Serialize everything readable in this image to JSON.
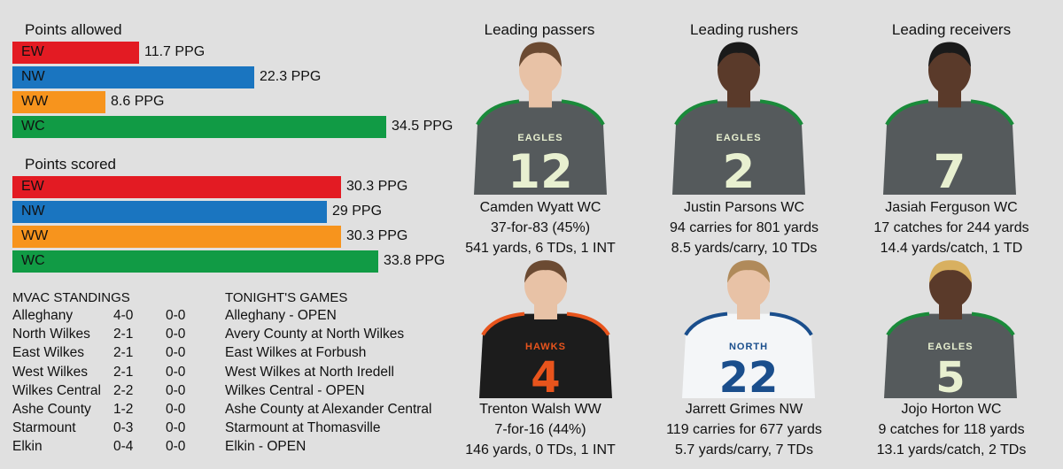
{
  "points_allowed": {
    "title": "Points allowed",
    "bars": [
      {
        "team": "EW",
        "value": 11.7,
        "label": "11.7 PPG",
        "color": "#e31b23"
      },
      {
        "team": "NW",
        "value": 22.3,
        "label": "22.3 PPG",
        "color": "#1a75c0"
      },
      {
        "team": "WW",
        "value": 8.6,
        "label": "8.6 PPG",
        "color": "#f7941d"
      },
      {
        "team": "WC",
        "value": 34.5,
        "label": "34.5 PPG",
        "color": "#119b45"
      }
    ]
  },
  "points_scored": {
    "title": "Points scored",
    "bars": [
      {
        "team": "EW",
        "value": 30.3,
        "label": "30.3 PPG",
        "color": "#e31b23"
      },
      {
        "team": "NW",
        "value": 29,
        "label": "29 PPG",
        "color": "#1a75c0"
      },
      {
        "team": "WW",
        "value": 30.3,
        "label": "30.3 PPG",
        "color": "#f7941d"
      },
      {
        "team": "WC",
        "value": 33.8,
        "label": "33.8 PPG",
        "color": "#119b45"
      }
    ]
  },
  "standings": {
    "title": "MVAC STANDINGS",
    "rows": [
      {
        "team": "Alleghany",
        "overall": "4-0",
        "conf": "0-0"
      },
      {
        "team": "North Wilkes",
        "overall": "2-1",
        "conf": "0-0"
      },
      {
        "team": "East Wilkes",
        "overall": "2-1",
        "conf": "0-0"
      },
      {
        "team": "West Wilkes",
        "overall": "2-1",
        "conf": "0-0"
      },
      {
        "team": "Wilkes Central",
        "overall": "2-2",
        "conf": "0-0"
      },
      {
        "team": "Ashe County",
        "overall": "1-2",
        "conf": "0-0"
      },
      {
        "team": "Starmount",
        "overall": "0-3",
        "conf": "0-0"
      },
      {
        "team": "Elkin",
        "overall": "0-4",
        "conf": "0-0"
      }
    ]
  },
  "games": {
    "title": "TONIGHT'S GAMES",
    "items": [
      "Alleghany - OPEN",
      "Avery County at North Wilkes",
      "East Wilkes at Forbush",
      "West Wilkes at North Iredell",
      "Wilkes Central - OPEN",
      "Ashe County at Alexander Central",
      "Starmount at Thomasville",
      "Elkin - OPEN"
    ]
  },
  "leaders": {
    "passers_title": "Leading passers",
    "rushers_title": "Leading rushers",
    "receivers_title": "Leading receivers",
    "players": [
      {
        "name": "Camden Wyatt WC",
        "line1": "37-for-83 (45%)",
        "line2": "541 yards, 6 TDs, 1 INT",
        "jersey_number": "12",
        "jersey_text": "EAGLES",
        "jersey_color": "#555a5c",
        "number_color": "#e8f0d0"
      },
      {
        "name": "Justin Parsons WC",
        "line1": "94 carries for 801 yards",
        "line2": "8.5 yards/carry, 10 TDs",
        "jersey_number": "2",
        "jersey_text": "EAGLES",
        "jersey_color": "#555a5c",
        "number_color": "#e8f0d0"
      },
      {
        "name": "Jasiah Ferguson WC",
        "line1": "17 catches for 244 yards",
        "line2": "14.4 yards/catch, 1 TD",
        "jersey_number": "7",
        "jersey_text": "",
        "jersey_color": "#555a5c",
        "number_color": "#e8f0d0"
      },
      {
        "name": "Trenton Walsh WW",
        "line1": "7-for-16 (44%)",
        "line2": "146 yards, 0 TDs, 1 INT",
        "jersey_number": "4",
        "jersey_text": "HAWKS",
        "jersey_color": "#1c1c1c",
        "number_color": "#e8541c"
      },
      {
        "name": "Jarrett Grimes NW",
        "line1": "119 carries for 677 yards",
        "line2": "5.7 yards/carry, 7 TDs",
        "jersey_number": "22",
        "jersey_text": "NORTH",
        "jersey_color": "#f4f6f8",
        "number_color": "#1a4e8c"
      },
      {
        "name": "Jojo Horton WC",
        "line1": "9 catches for 118 yards",
        "line2": "13.1 yards/catch, 2 TDs",
        "jersey_number": "5",
        "jersey_text": "EAGLES",
        "jersey_color": "#555a5c",
        "number_color": "#e8f0d0"
      }
    ]
  }
}
